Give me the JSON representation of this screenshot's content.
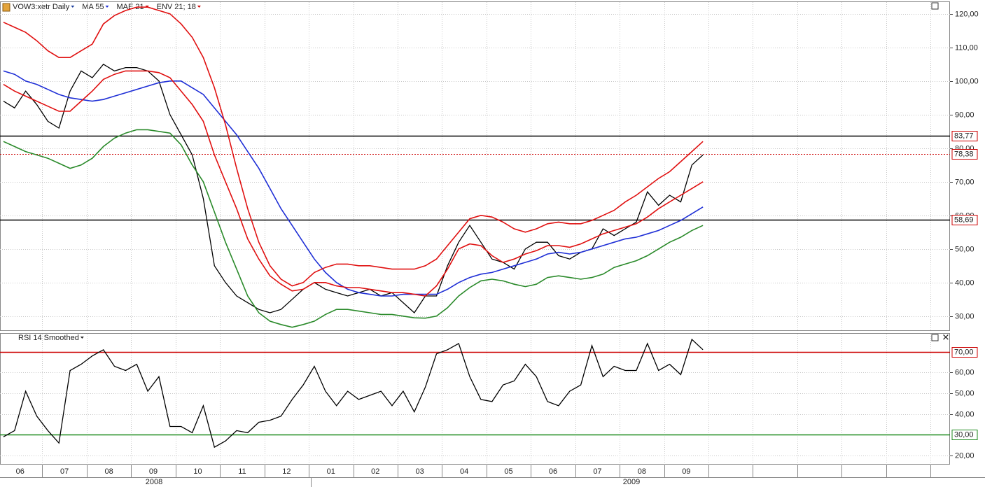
{
  "chart_data": [
    {
      "type": "line",
      "categories": [
        "06",
        null,
        null,
        null,
        "07",
        null,
        null,
        null,
        "08",
        null,
        null,
        null,
        "09",
        null,
        null,
        null,
        "10",
        null,
        null,
        null,
        "11",
        null,
        null,
        null,
        "12",
        null,
        null,
        null,
        "01",
        null,
        null,
        null,
        "02",
        null,
        null,
        null,
        "03",
        null,
        null,
        null,
        "04",
        null,
        null,
        null,
        "05",
        null,
        null,
        null,
        "06",
        null,
        null,
        null,
        "07",
        null,
        null,
        null,
        "08",
        null,
        null,
        null,
        "09",
        null,
        null,
        null
      ],
      "years": [
        "2008",
        "2009"
      ],
      "series": [
        {
          "name": "VOW3:xetr Daily",
          "color": "#000000",
          "values": [
            94,
            92,
            97,
            93,
            88,
            86,
            97,
            103,
            101,
            105,
            103,
            104,
            104,
            103,
            100,
            90,
            84,
            78,
            65,
            45,
            40,
            36,
            34,
            32,
            31,
            32,
            35,
            38,
            40,
            38,
            37,
            36,
            37,
            38,
            36,
            37,
            34,
            31,
            36,
            36,
            45,
            52,
            57,
            52,
            47,
            46,
            44,
            50,
            52,
            52,
            48,
            47,
            49,
            50,
            56,
            54,
            56,
            58,
            67,
            63,
            66,
            64,
            75,
            78
          ]
        },
        {
          "name": "MA 55",
          "color": "#1f2fd6",
          "values": [
            103,
            102,
            100,
            99,
            97.5,
            96,
            95,
            94.5,
            94,
            94.5,
            95.5,
            96.5,
            97.5,
            98.5,
            99.5,
            100,
            100,
            98,
            96,
            92,
            88,
            84,
            79,
            74,
            68,
            62,
            57,
            52,
            47,
            43,
            40,
            38,
            37,
            36.5,
            36,
            36,
            36.5,
            36.5,
            36.5,
            36.5,
            38,
            40,
            41.5,
            42.5,
            43,
            44,
            45,
            46,
            47,
            48.5,
            49,
            48.5,
            49,
            50,
            51,
            52,
            53,
            53.5,
            54.5,
            55.5,
            57,
            58.5,
            60.5,
            62.5
          ]
        },
        {
          "name": "MAE 21",
          "color": "#e01010",
          "values": [
            99,
            97,
            95.5,
            94,
            92.5,
            91,
            91,
            94,
            97,
            100.5,
            102,
            103,
            103,
            103,
            102.5,
            101,
            97,
            93,
            88,
            78,
            70,
            62,
            53,
            47,
            42,
            39.5,
            37.5,
            38,
            40,
            40,
            39,
            38.5,
            38.5,
            38,
            37.5,
            37,
            37,
            36.5,
            36,
            39,
            44,
            50,
            51.5,
            51,
            48,
            46,
            47,
            48.5,
            49.5,
            51,
            51,
            50.5,
            51.5,
            53,
            54.5,
            55.5,
            56.5,
            57.5,
            59.5,
            62,
            64,
            66,
            68,
            70
          ]
        },
        {
          "name": "ENV 21; 18",
          "color": "#e01010",
          "lower_color": "#2a8a2a",
          "values": [
            117.5,
            116,
            114.5,
            112,
            109,
            107,
            107,
            109,
            111,
            117,
            119.5,
            121,
            122,
            122,
            121,
            120,
            117,
            113,
            107,
            98,
            87,
            74,
            62,
            52,
            45,
            41,
            39,
            40,
            43,
            44.5,
            45.5,
            45.5,
            45,
            45,
            44.5,
            44,
            44,
            44,
            45,
            47,
            51,
            55,
            59,
            60,
            59.5,
            58,
            56,
            55,
            56,
            57.5,
            58,
            57.5,
            57.5,
            58.5,
            60,
            61.5,
            64,
            66,
            68.5,
            71,
            73,
            76,
            79,
            82
          ],
          "lower": [
            82,
            80.5,
            79,
            78,
            77,
            75.5,
            74,
            75,
            77,
            80.5,
            83,
            84.5,
            85.5,
            85.5,
            85,
            84.5,
            81,
            75,
            70,
            61,
            52,
            44,
            36,
            31,
            28.5,
            27.5,
            26.7,
            27.5,
            28.5,
            30.5,
            32,
            32,
            31.5,
            31,
            30.5,
            30.5,
            30,
            29.5,
            29.4,
            30,
            32.5,
            36,
            38.5,
            40.5,
            41,
            40.5,
            39.5,
            38.8,
            39.5,
            41.5,
            42,
            41.5,
            41,
            41.5,
            42.5,
            44.5,
            45.5,
            46.5,
            48,
            50,
            52,
            53.5,
            55.5,
            57
          ]
        }
      ],
      "ylim": [
        25.8,
        123.5
      ],
      "yticks": [
        {
          "value": 30,
          "label": "30,00"
        },
        {
          "value": 40,
          "label": "40,00"
        },
        {
          "value": 50,
          "label": "50,00"
        },
        {
          "value": 60,
          "label": "60,00"
        },
        {
          "value": 70,
          "label": "70,00"
        },
        {
          "value": 80,
          "label": "80,00"
        },
        {
          "value": 90,
          "label": "90,00"
        },
        {
          "value": 100,
          "label": "100,00"
        },
        {
          "value": 110,
          "label": "110,00"
        },
        {
          "value": 120,
          "label": "120,00"
        }
      ],
      "hlines": [
        {
          "value": 83.77,
          "label": "83,77"
        },
        {
          "value": 58.69,
          "label": "58,69"
        }
      ],
      "last_price": {
        "value": 78.38,
        "label": "78,38"
      },
      "grid": true
    },
    {
      "type": "line",
      "series": [
        {
          "name": "RSI 14 Smoothed",
          "color": "#000000",
          "values": [
            29,
            32,
            51,
            39,
            32,
            26,
            61,
            64,
            68,
            71,
            63,
            61,
            64,
            51,
            58,
            34,
            34,
            31,
            44,
            24,
            27,
            32,
            31,
            36,
            37,
            39,
            47,
            54,
            63,
            51,
            44,
            51,
            47,
            49,
            51,
            44,
            51,
            41,
            53,
            69,
            71,
            74,
            58,
            47,
            46,
            54,
            56,
            64,
            58,
            46,
            44,
            51,
            54,
            73,
            58,
            63,
            61,
            61,
            74,
            61,
            64,
            59,
            76,
            71
          ]
        }
      ],
      "ylim": [
        15.6,
        78.7
      ],
      "yticks": [
        {
          "value": 20,
          "label": "20,00"
        },
        {
          "value": 40,
          "label": "40,00"
        },
        {
          "value": 50,
          "label": "50,00"
        },
        {
          "value": 60,
          "label": "60,00"
        }
      ],
      "levels": [
        {
          "value": 70,
          "label": "70,00",
          "color": "#cc0000"
        },
        {
          "value": 30,
          "label": "30,00",
          "color": "#1e8a1e"
        }
      ],
      "grid": true
    }
  ]
}
